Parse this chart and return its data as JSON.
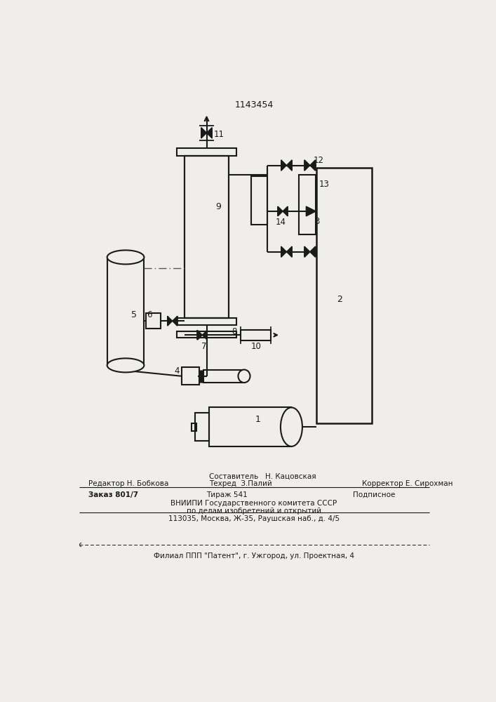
{
  "title": "1143454",
  "bg_color": "#f0eeea",
  "line_color": "#1a1a1a",
  "lw": 1.5,
  "footer": {
    "line1_left": "Редактор Н. Бобкова",
    "line1_center_top": "Составитель   Н. Кацовская",
    "line1_center_bot": "Техред  З.Палий",
    "line1_right": "Корректор Е. Сирохман",
    "line2_left": "Заказ 801/7",
    "line2_center": "Тираж 541",
    "line2_right": "Подписное",
    "line3": "ВНИИПИ Государственного комитета СССР",
    "line4": "по делам изобретений и открытий",
    "line5": "113035, Москва, Ж-35, Раушская наб., д. 4/5",
    "line6": "Филиал ППП \"Патент\", г. Ужгород, ул. Проектная, 4"
  }
}
